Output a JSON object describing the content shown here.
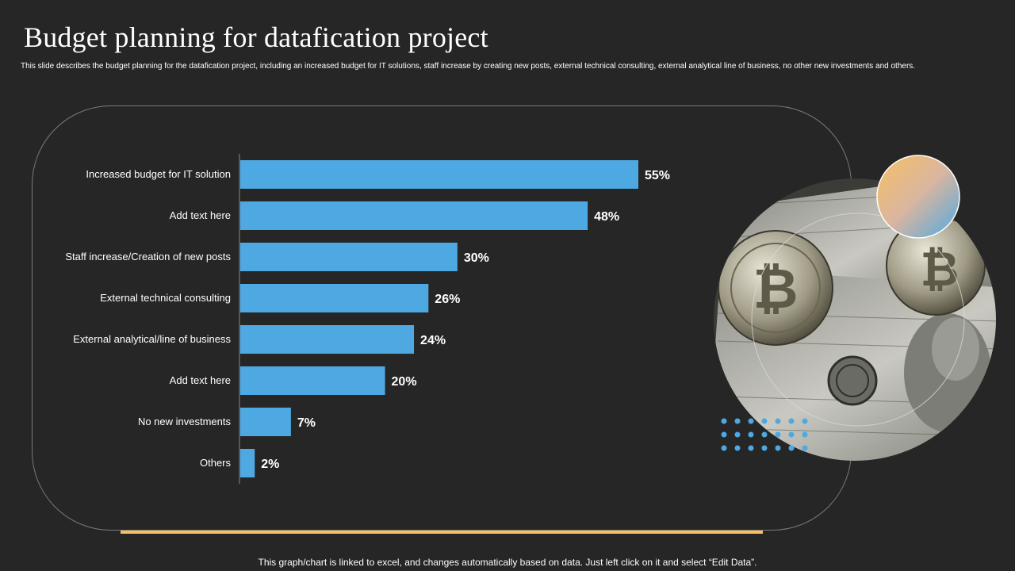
{
  "header": {
    "title": "Budget planning for datafication project",
    "subtitle": "This slide describes the budget planning  for the datafication project, including  an increased budget for IT solutions, staff increase by creating new posts, external technical consulting, external analytical line of business, no other new investments and others."
  },
  "footer": {
    "note": "This graph/chart is linked to excel,  and changes automatically based on data. Just left click on it and select “Edit Data”."
  },
  "colors": {
    "background": "#262626",
    "bar": "#4ea9e3",
    "accent": "#f6bf63",
    "frame": "#7a7a7a"
  },
  "decor": {
    "photo": "bitcoin-and-dollar-bills-photo",
    "gradient_circle": "orange-to-blue-gradient-circle",
    "dot_grid": "blue-dot-grid"
  },
  "chart_data": {
    "type": "bar",
    "orientation": "horizontal",
    "categories": [
      "Increased budget for IT solution",
      "Add text here",
      "Staff increase/Creation of new posts",
      "External technical consulting",
      "External analytical/line of business",
      "Add text here",
      "No new investments",
      "Others"
    ],
    "values": [
      55,
      48,
      30,
      26,
      24,
      20,
      7,
      2
    ],
    "value_labels": [
      "55%",
      "48%",
      "30%",
      "26%",
      "24%",
      "20%",
      "7%",
      "2%"
    ],
    "unit": "%",
    "xlim": [
      0,
      60
    ],
    "grid": false,
    "legend": "none"
  }
}
